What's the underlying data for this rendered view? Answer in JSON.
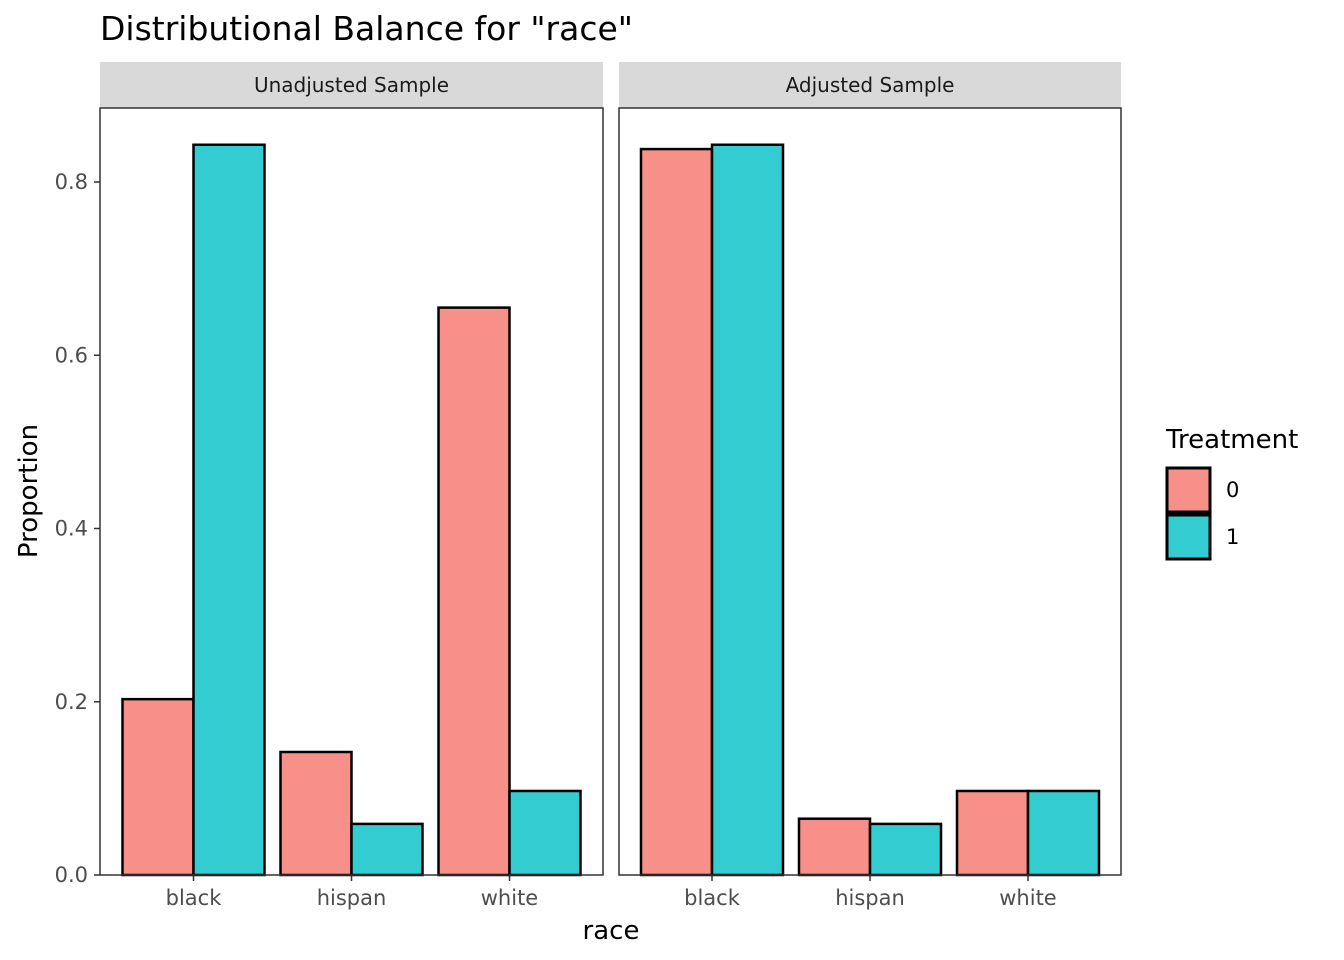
{
  "chart_data": {
    "type": "bar",
    "title": "Distributional Balance for \"race\"",
    "xlabel": "race",
    "ylabel": "Proportion",
    "ylim": [
      0,
      0.88
    ],
    "yticks": [
      0.0,
      0.2,
      0.4,
      0.6,
      0.8
    ],
    "ytick_labels": [
      "0.0",
      "0.2",
      "0.4",
      "0.6",
      "0.8"
    ],
    "categories": [
      "black",
      "hispan",
      "white"
    ],
    "legend": {
      "title": "Treatment",
      "position": "right",
      "entries": [
        {
          "label": "0",
          "color": "#F8908A"
        },
        {
          "label": "1",
          "color": "#33CCD1"
        }
      ]
    },
    "panels": [
      {
        "label": "Unadjusted Sample",
        "series": [
          {
            "name": "0",
            "values": [
              0.203,
              0.142,
              0.655
            ]
          },
          {
            "name": "1",
            "values": [
              0.843,
              0.059,
              0.097
            ]
          }
        ]
      },
      {
        "label": "Adjusted Sample",
        "series": [
          {
            "name": "0",
            "values": [
              0.838,
              0.065,
              0.097
            ]
          },
          {
            "name": "1",
            "values": [
              0.843,
              0.059,
              0.097
            ]
          }
        ]
      }
    ],
    "grid": false
  }
}
